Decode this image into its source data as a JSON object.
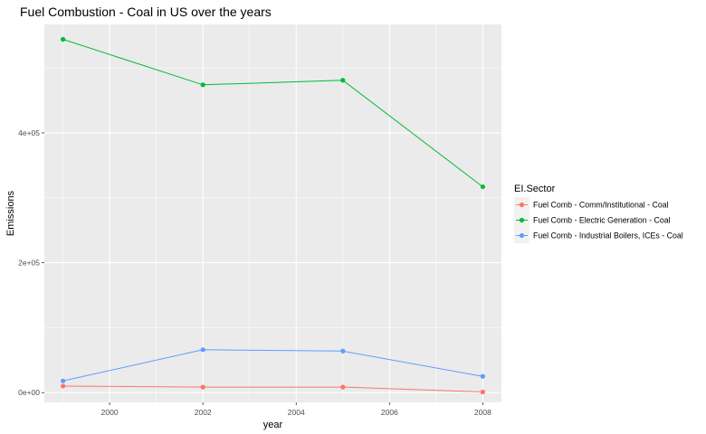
{
  "chart_data": {
    "type": "line",
    "title": "Fuel Combustion - Coal in US over the years",
    "xlabel": "year",
    "ylabel": "Emissions",
    "x": [
      1999,
      2002,
      2005,
      2008
    ],
    "xlim": [
      1998.6,
      2008.4
    ],
    "ylim": [
      -15000,
      567000
    ],
    "x_ticks": [
      2000,
      2002,
      2004,
      2006,
      2008
    ],
    "x_tick_labels": [
      "2000",
      "2002",
      "2004",
      "2006",
      "2008"
    ],
    "y_ticks": [
      0,
      200000,
      400000
    ],
    "y_tick_labels": [
      "0e+00",
      "2e+05",
      "4e+05"
    ],
    "grid": true,
    "legend": {
      "title": "EI.Sector",
      "placement": "right"
    },
    "series": [
      {
        "name": "Fuel Comb - Comm/Institutional - Coal",
        "color": "#F8766D",
        "values": [
          10000,
          8500,
          8500,
          1000
        ]
      },
      {
        "name": "Fuel Comb - Electric Generation - Coal",
        "color": "#00BA38",
        "values": [
          544000,
          474000,
          481000,
          317000
        ]
      },
      {
        "name": "Fuel Comb - Industrial Boilers, ICEs - Coal",
        "color": "#619CFF",
        "values": [
          18000,
          66000,
          64000,
          25000
        ]
      }
    ]
  }
}
